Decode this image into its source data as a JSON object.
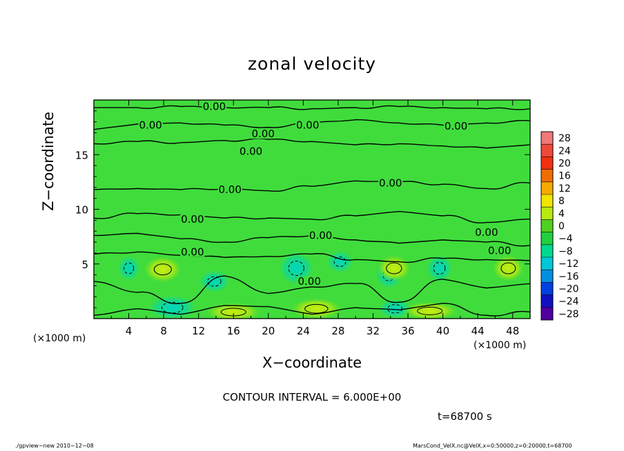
{
  "chart_data": {
    "type": "heatmap",
    "title": "zonal velocity",
    "xlabel": "X−coordinate",
    "ylabel": "Z−coordinate",
    "x_unit": "(×1000 m)",
    "xlim": [
      0,
      50
    ],
    "ylim": [
      0,
      20
    ],
    "x_ticks": [
      4,
      8,
      12,
      16,
      20,
      24,
      28,
      32,
      36,
      40,
      44,
      48
    ],
    "y_ticks": [
      5,
      10,
      15
    ],
    "colorbar_levels": [
      28,
      24,
      20,
      16,
      12,
      8,
      4,
      0,
      -4,
      -8,
      -12,
      -16,
      -20,
      -24,
      -28
    ],
    "colorbar_level_labels": [
      "28",
      "24",
      "20",
      "16",
      "12",
      "8",
      "4",
      "0",
      "−4",
      "−8",
      "−12",
      "−16",
      "−20",
      "−24",
      "−28"
    ],
    "colorbar_colors": [
      "#f07878",
      "#f04838",
      "#f03010",
      "#f06e00",
      "#f4aa00",
      "#f0e400",
      "#b8ea10",
      "#50d020",
      "#20d040",
      "#00d890",
      "#00c8d8",
      "#0090e0",
      "#0040e0",
      "#1010c0",
      "#5000a0"
    ],
    "contour_lines": [
      {
        "label": "0.00",
        "x": [
          0,
          5,
          10,
          15,
          20,
          25,
          30,
          35,
          40,
          45,
          50
        ],
        "z": [
          19.3,
          19.3,
          19.4,
          19.3,
          19.3,
          19.2,
          19.3,
          19.4,
          19.3,
          19.2,
          19.2
        ]
      },
      {
        "label": "0.00",
        "x": [
          0,
          5,
          10,
          15,
          20,
          25,
          30,
          35,
          40,
          45,
          50
        ],
        "z": [
          17.3,
          17.8,
          17.9,
          17.7,
          17.5,
          17.9,
          18.2,
          17.9,
          17.7,
          17.9,
          18.1
        ]
      },
      {
        "label": "0.00",
        "x": [
          0,
          5,
          10,
          15,
          20,
          25,
          30,
          35,
          40,
          45,
          50
        ],
        "z": [
          16.0,
          16.2,
          16.1,
          16.3,
          16.4,
          16.2,
          15.9,
          16.0,
          15.8,
          15.6,
          15.9
        ]
      },
      {
        "label": "0.00",
        "x": [
          0,
          5,
          10,
          15,
          20,
          25,
          30,
          35,
          40,
          45,
          50
        ],
        "z": [
          11.8,
          11.9,
          11.8,
          11.9,
          11.7,
          12.1,
          12.6,
          12.5,
          12.3,
          11.9,
          12.4
        ]
      },
      {
        "label": "0.00",
        "x": [
          0,
          5,
          10,
          15,
          20,
          25,
          30,
          35,
          40,
          45,
          50
        ],
        "z": [
          9.2,
          9.6,
          9.5,
          9.2,
          9.2,
          9.1,
          9.4,
          9.8,
          9.4,
          8.8,
          9.1
        ]
      },
      {
        "label": "0.00",
        "x": [
          0,
          5,
          10,
          15,
          20,
          25,
          30,
          35,
          40,
          45,
          50
        ],
        "z": [
          7.6,
          7.8,
          7.3,
          7.0,
          7.4,
          7.6,
          7.2,
          6.9,
          7.2,
          7.0,
          6.7
        ]
      },
      {
        "label": "0.00",
        "x": [
          0,
          5,
          10,
          15,
          20,
          25,
          30,
          35,
          40,
          45,
          50
        ],
        "z": [
          5.9,
          6.1,
          5.8,
          5.6,
          5.7,
          5.9,
          5.4,
          5.2,
          5.5,
          5.4,
          5.3
        ]
      },
      {
        "label": "0.00",
        "x": [
          0,
          5,
          10,
          15,
          20,
          25,
          30,
          35,
          40,
          45,
          50
        ],
        "z": [
          3.4,
          2.4,
          1.4,
          3.9,
          2.3,
          2.9,
          3.2,
          1.5,
          3.6,
          2.8,
          3.2
        ]
      },
      {
        "label": "",
        "x": [
          0,
          5,
          10,
          15,
          20,
          25,
          30,
          35,
          40,
          45,
          50
        ],
        "z": [
          0.3,
          0.9,
          0.4,
          1.2,
          1.1,
          0.4,
          1.0,
          0.8,
          1.4,
          0.3,
          0.6
        ]
      }
    ],
    "contour_labels_shown": [
      {
        "text": "0.00",
        "x": 13.8,
        "z": 19.4
      },
      {
        "text": "0.00",
        "x": 6.5,
        "z": 17.7
      },
      {
        "text": "0.00",
        "x": 24.5,
        "z": 17.7
      },
      {
        "text": "0.00",
        "x": 41.5,
        "z": 17.6
      },
      {
        "text": "0.00",
        "x": 19.4,
        "z": 16.9
      },
      {
        "text": "0.00",
        "x": 18.0,
        "z": 15.3
      },
      {
        "text": "0.00",
        "x": 34.0,
        "z": 12.4
      },
      {
        "text": "0.00",
        "x": 15.6,
        "z": 11.8
      },
      {
        "text": "0.00",
        "x": 11.3,
        "z": 9.1
      },
      {
        "text": "0.00",
        "x": 26.0,
        "z": 7.6
      },
      {
        "text": "0.00",
        "x": 45.0,
        "z": 7.9
      },
      {
        "text": "0.00",
        "x": 11.3,
        "z": 6.1
      },
      {
        "text": "0.00",
        "x": 46.5,
        "z": 6.2
      },
      {
        "text": "0.00",
        "x": 24.7,
        "z": 3.4
      }
    ],
    "negative_cells": [
      {
        "x": 4.0,
        "z": 4.6,
        "rx": 1.0,
        "rz": 0.9
      },
      {
        "x": 13.8,
        "z": 3.4,
        "rx": 1.4,
        "rz": 0.8
      },
      {
        "x": 23.2,
        "z": 4.6,
        "rx": 1.6,
        "rz": 1.2
      },
      {
        "x": 28.2,
        "z": 5.2,
        "rx": 1.2,
        "rz": 0.8
      },
      {
        "x": 33.8,
        "z": 4.0,
        "rx": 1.2,
        "rz": 1.0
      },
      {
        "x": 39.6,
        "z": 4.6,
        "rx": 1.2,
        "rz": 1.0
      },
      {
        "x": 9.0,
        "z": 1.0,
        "rx": 2.2,
        "rz": 0.9
      },
      {
        "x": 34.5,
        "z": 0.9,
        "rx": 1.5,
        "rz": 0.7
      }
    ],
    "positive_cells": [
      {
        "x": 7.9,
        "z": 4.5,
        "rx": 1.8,
        "rz": 1.0
      },
      {
        "x": 16.0,
        "z": 0.6,
        "rx": 2.6,
        "rz": 0.7
      },
      {
        "x": 25.5,
        "z": 0.9,
        "rx": 2.4,
        "rz": 0.8
      },
      {
        "x": 38.5,
        "z": 0.7,
        "rx": 2.6,
        "rz": 0.7
      },
      {
        "x": 34.4,
        "z": 4.6,
        "rx": 1.6,
        "rz": 1.0
      },
      {
        "x": 47.5,
        "z": 4.6,
        "rx": 1.5,
        "rz": 1.0
      }
    ]
  },
  "contour_interval": "CONTOUR INTERVAL = 6.000E+00",
  "time_label": "t=68700 s",
  "footer_left": "./gpview−new   2010−12−08",
  "footer_right": "MarsCond_VelX.nc@VelX,x=0:50000,z=0:20000,t=68700"
}
